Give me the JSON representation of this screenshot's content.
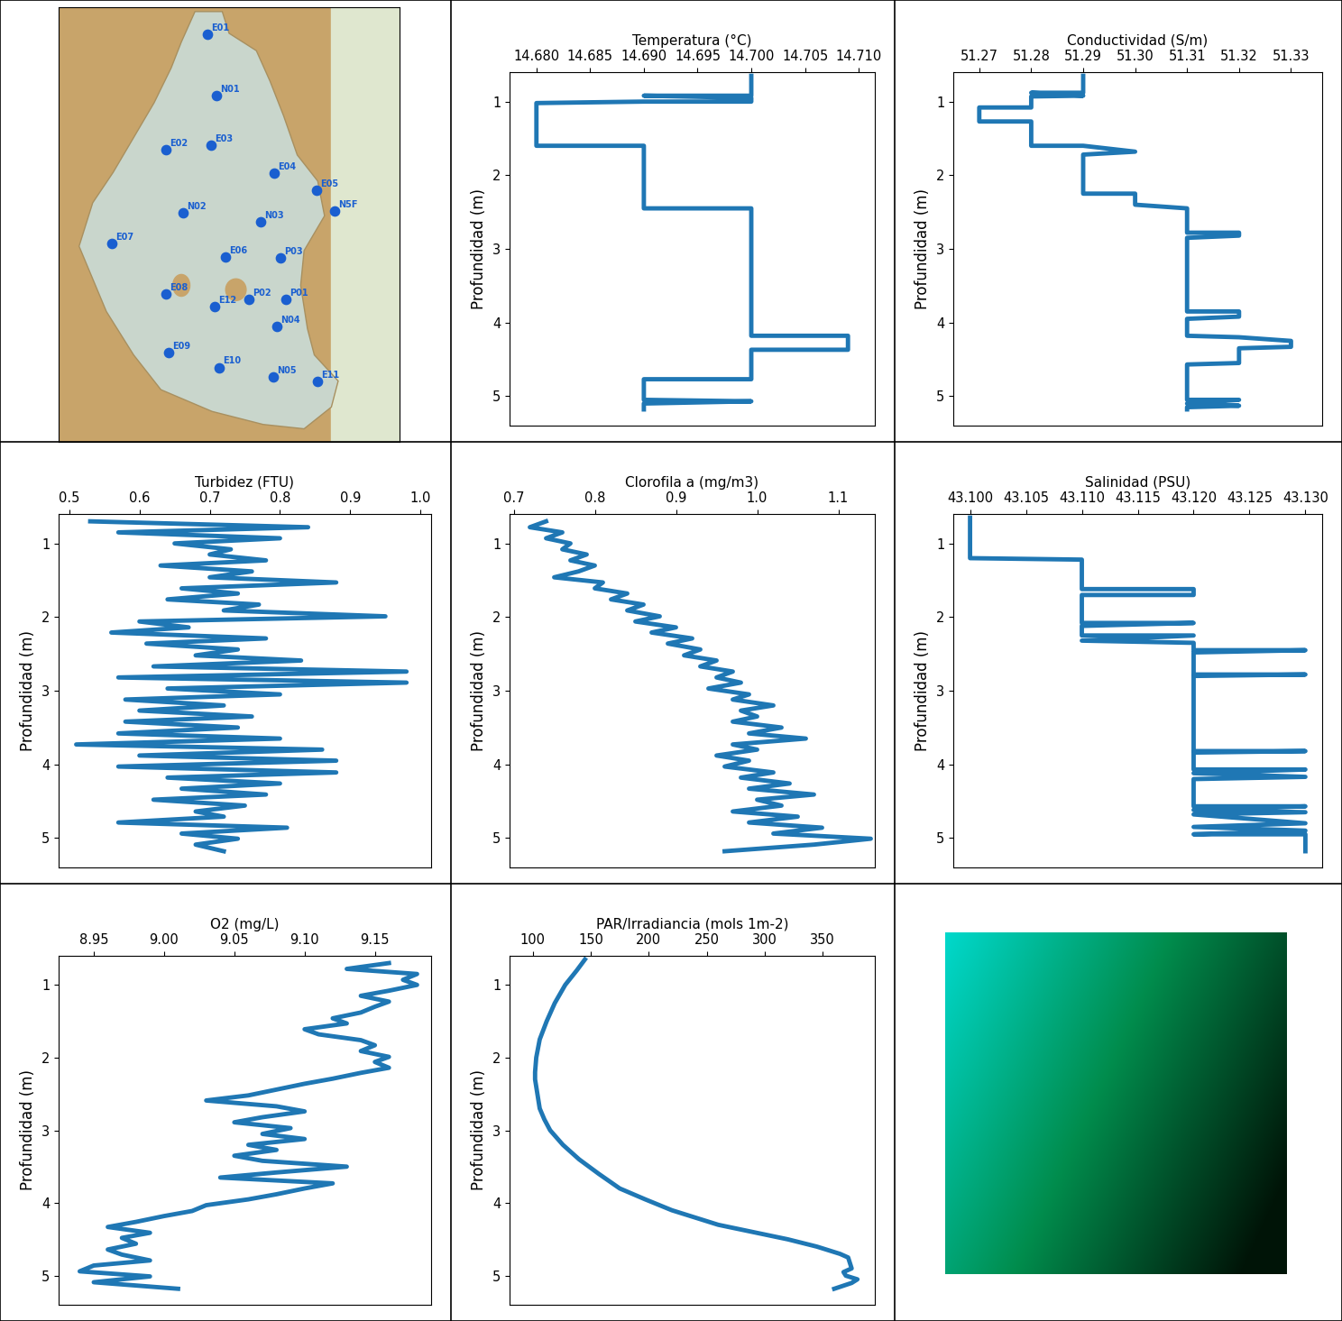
{
  "chart_data": [
    {
      "type": "map",
      "xlim": [
        0,
        100
      ],
      "ylim": [
        0,
        100
      ],
      "tick_labels": false,
      "color": "#1a5fd0",
      "points": [
        {
          "name": "E01",
          "x": 43.7,
          "y": 93.8
        },
        {
          "name": "N01",
          "x": 46.3,
          "y": 79.7
        },
        {
          "name": "E02",
          "x": 31.5,
          "y": 67.2
        },
        {
          "name": "E03",
          "x": 44.7,
          "y": 68.3
        },
        {
          "name": "E04",
          "x": 63.2,
          "y": 61.8
        },
        {
          "name": "E05",
          "x": 75.7,
          "y": 57.9
        },
        {
          "name": "N5F",
          "x": 81.0,
          "y": 53.1
        },
        {
          "name": "N02",
          "x": 36.5,
          "y": 52.7
        },
        {
          "name": "N03",
          "x": 59.3,
          "y": 50.6
        },
        {
          "name": "E07",
          "x": 15.6,
          "y": 45.6
        },
        {
          "name": "E06",
          "x": 48.9,
          "y": 42.5
        },
        {
          "name": "P03",
          "x": 65.1,
          "y": 42.3
        },
        {
          "name": "E08",
          "x": 31.5,
          "y": 34.0
        },
        {
          "name": "P02",
          "x": 55.8,
          "y": 32.8
        },
        {
          "name": "P01",
          "x": 66.7,
          "y": 32.8
        },
        {
          "name": "E12",
          "x": 45.8,
          "y": 31.1
        },
        {
          "name": "N04",
          "x": 64.0,
          "y": 26.6
        },
        {
          "name": "E09",
          "x": 32.3,
          "y": 20.5
        },
        {
          "name": "E10",
          "x": 47.1,
          "y": 17.1
        },
        {
          "name": "N05",
          "x": 63.0,
          "y": 14.9
        },
        {
          "name": "E11",
          "x": 75.9,
          "y": 13.9
        }
      ]
    },
    {
      "type": "line",
      "xlabel": "Temperatura (°C)",
      "ylabel": "Profundidad (m)",
      "color": "#1f77b4",
      "xlim": [
        14.6775,
        14.7115
      ],
      "ylim": [
        5.4,
        0.6
      ],
      "xticks": [
        {
          "value": 14.68,
          "label": "14.680"
        },
        {
          "value": 14.685,
          "label": "14.685"
        },
        {
          "value": 14.69,
          "label": "14.690"
        },
        {
          "value": 14.695,
          "label": "14.695"
        },
        {
          "value": 14.7,
          "label": "14.700"
        },
        {
          "value": 14.705,
          "label": "14.705"
        },
        {
          "value": 14.71,
          "label": "14.710"
        }
      ],
      "yticks": [
        1,
        2,
        3,
        4,
        5
      ],
      "x": [
        14.7,
        14.7,
        14.69,
        14.7,
        14.7,
        14.69,
        14.68,
        14.68,
        14.69,
        14.69,
        14.7,
        14.7,
        14.709,
        14.709,
        14.7,
        14.7,
        14.69,
        14.69,
        14.7,
        14.69,
        14.69
      ],
      "values": [
        0.65,
        0.92,
        0.92,
        0.95,
        1.0,
        1.0,
        1.02,
        1.6,
        1.6,
        2.45,
        2.45,
        4.18,
        4.18,
        4.37,
        4.37,
        4.77,
        4.77,
        5.05,
        5.07,
        5.1,
        5.18
      ]
    },
    {
      "type": "line",
      "xlabel": "Conductividad (S/m)",
      "ylabel": "Profundidad (m)",
      "color": "#1f77b4",
      "xlim": [
        51.265,
        51.336
      ],
      "ylim": [
        5.4,
        0.6
      ],
      "xticks": [
        {
          "value": 51.27,
          "label": "51.27"
        },
        {
          "value": 51.28,
          "label": "51.28"
        },
        {
          "value": 51.29,
          "label": "51.29"
        },
        {
          "value": 51.3,
          "label": "51.30"
        },
        {
          "value": 51.31,
          "label": "51.31"
        },
        {
          "value": 51.32,
          "label": "51.32"
        },
        {
          "value": 51.33,
          "label": "51.33"
        }
      ],
      "yticks": [
        1,
        2,
        3,
        4,
        5
      ],
      "x": [
        51.29,
        51.29,
        51.28,
        51.29,
        51.28,
        51.28,
        51.27,
        51.27,
        51.28,
        51.28,
        51.29,
        51.3,
        51.29,
        51.29,
        51.3,
        51.3,
        51.31,
        51.31,
        51.32,
        51.32,
        51.31,
        51.31,
        51.32,
        51.32,
        51.31,
        51.31,
        51.32,
        51.33,
        51.33,
        51.32,
        51.32,
        51.31,
        51.31,
        51.32,
        51.31,
        51.32,
        51.31,
        51.31
      ],
      "values": [
        0.65,
        0.88,
        0.88,
        0.92,
        0.93,
        1.08,
        1.08,
        1.27,
        1.27,
        1.6,
        1.6,
        1.68,
        1.72,
        2.25,
        2.25,
        2.4,
        2.45,
        2.78,
        2.78,
        2.82,
        2.85,
        3.85,
        3.85,
        3.92,
        3.95,
        4.18,
        4.2,
        4.25,
        4.33,
        4.35,
        4.55,
        4.57,
        5.05,
        5.05,
        5.1,
        5.13,
        5.15,
        5.18
      ]
    },
    {
      "type": "line",
      "xlabel": "Turbidez (FTU)",
      "ylabel": "Profundidad (m)",
      "color": "#1f77b4",
      "xlim": [
        0.485,
        1.015
      ],
      "ylim": [
        5.4,
        0.6
      ],
      "xticks": [
        0.5,
        0.6,
        0.7,
        0.8,
        0.9,
        {
          "value": 1.0,
          "label": "1.0"
        }
      ],
      "yticks": [
        1,
        2,
        3,
        4,
        5
      ],
      "x": [
        0.53,
        0.84,
        0.57,
        0.8,
        0.65,
        0.73,
        0.7,
        0.78,
        0.63,
        0.76,
        0.7,
        0.88,
        0.66,
        0.74,
        0.64,
        0.77,
        0.72,
        0.95,
        0.6,
        0.67,
        0.56,
        0.78,
        0.61,
        0.74,
        0.68,
        0.83,
        0.62,
        0.98,
        0.57,
        0.98,
        0.64,
        0.8,
        0.58,
        0.72,
        0.6,
        0.76,
        0.58,
        0.74,
        0.57,
        0.8,
        0.51,
        0.86,
        0.6,
        0.88,
        0.57,
        0.88,
        0.64,
        0.8,
        0.66,
        0.78,
        0.62,
        0.75,
        0.68,
        0.72,
        0.57,
        0.81,
        0.66,
        0.74,
        0.68,
        0.72
      ],
      "values": [
        0.7,
        0.78,
        0.85,
        0.93,
        1.0,
        1.08,
        1.15,
        1.23,
        1.3,
        1.38,
        1.46,
        1.53,
        1.61,
        1.68,
        1.76,
        1.83,
        1.91,
        1.99,
        2.06,
        2.14,
        2.21,
        2.29,
        2.36,
        2.44,
        2.52,
        2.59,
        2.67,
        2.74,
        2.82,
        2.89,
        2.97,
        3.05,
        3.12,
        3.2,
        3.27,
        3.35,
        3.42,
        3.5,
        3.58,
        3.65,
        3.73,
        3.8,
        3.88,
        3.95,
        4.03,
        4.11,
        4.18,
        4.26,
        4.33,
        4.41,
        4.48,
        4.56,
        4.64,
        4.71,
        4.79,
        4.86,
        4.94,
        5.01,
        5.09,
        5.18
      ]
    },
    {
      "type": "line",
      "xlabel": "Clorofila a (mg/m3)",
      "ylabel": "Profundidad (m)",
      "color": "#1f77b4",
      "xlim": [
        0.695,
        1.145
      ],
      "ylim": [
        5.4,
        0.6
      ],
      "xticks": [
        0.7,
        0.8,
        0.9,
        {
          "value": 1.0,
          "label": "1.0"
        },
        1.1
      ],
      "yticks": [
        1,
        2,
        3,
        4,
        5
      ],
      "x": [
        0.74,
        0.72,
        0.76,
        0.74,
        0.77,
        0.76,
        0.79,
        0.77,
        0.8,
        0.78,
        0.75,
        0.81,
        0.8,
        0.84,
        0.82,
        0.86,
        0.84,
        0.88,
        0.85,
        0.9,
        0.87,
        0.92,
        0.89,
        0.93,
        0.91,
        0.95,
        0.93,
        0.97,
        0.95,
        0.98,
        0.94,
        0.99,
        0.97,
        1.02,
        0.98,
        1.0,
        0.97,
        1.03,
        0.99,
        1.06,
        0.97,
        1.0,
        0.95,
        0.99,
        0.96,
        1.02,
        0.98,
        1.04,
        0.99,
        1.07,
        1.0,
        1.03,
        0.97,
        1.05,
        0.99,
        1.08,
        1.02,
        1.14,
        1.07,
        0.96
      ],
      "values": [
        0.7,
        0.78,
        0.85,
        0.93,
        1.0,
        1.08,
        1.15,
        1.23,
        1.3,
        1.38,
        1.46,
        1.53,
        1.61,
        1.68,
        1.76,
        1.83,
        1.91,
        1.99,
        2.06,
        2.14,
        2.21,
        2.29,
        2.36,
        2.44,
        2.52,
        2.59,
        2.67,
        2.74,
        2.82,
        2.89,
        2.97,
        3.05,
        3.12,
        3.2,
        3.27,
        3.35,
        3.42,
        3.5,
        3.58,
        3.65,
        3.73,
        3.8,
        3.88,
        3.95,
        4.03,
        4.11,
        4.18,
        4.26,
        4.33,
        4.41,
        4.48,
        4.56,
        4.64,
        4.71,
        4.79,
        4.86,
        4.94,
        5.01,
        5.09,
        5.18
      ]
    },
    {
      "type": "line",
      "xlabel": "Salinidad (PSU)",
      "ylabel": "Profundidad (m)",
      "color": "#1f77b4",
      "xlim": [
        43.0985,
        43.1315
      ],
      "ylim": [
        5.4,
        0.6
      ],
      "xticks": [
        {
          "value": 43.1,
          "label": "43.100"
        },
        {
          "value": 43.105,
          "label": "43.105"
        },
        {
          "value": 43.11,
          "label": "43.110"
        },
        {
          "value": 43.115,
          "label": "43.115"
        },
        {
          "value": 43.12,
          "label": "43.120"
        },
        {
          "value": 43.125,
          "label": "43.125"
        },
        {
          "value": 43.13,
          "label": "43.130"
        }
      ],
      "yticks": [
        1,
        2,
        3,
        4,
        5
      ],
      "x": [
        43.1,
        43.1,
        43.11,
        43.11,
        43.12,
        43.12,
        43.11,
        43.11,
        43.12,
        43.11,
        43.11,
        43.12,
        43.11,
        43.12,
        43.12,
        43.13,
        43.12,
        43.12,
        43.13,
        43.12,
        43.12,
        43.13,
        43.12,
        43.12,
        43.13,
        43.12,
        43.13,
        43.12,
        43.12,
        43.13,
        43.12,
        43.13,
        43.12,
        43.13,
        43.12,
        43.13,
        43.12,
        43.13,
        43.13
      ],
      "values": [
        0.65,
        1.2,
        1.22,
        1.62,
        1.62,
        1.7,
        1.7,
        2.08,
        2.08,
        2.12,
        2.25,
        2.25,
        2.32,
        2.35,
        2.45,
        2.45,
        2.48,
        2.78,
        2.78,
        2.8,
        3.82,
        3.82,
        3.84,
        4.07,
        4.07,
        4.12,
        4.17,
        4.2,
        4.57,
        4.57,
        4.62,
        4.65,
        4.68,
        4.8,
        4.85,
        4.9,
        4.95,
        4.95,
        5.18
      ]
    },
    {
      "type": "line",
      "xlabel": "O2 (mg/L)",
      "ylabel": "Profundidad (m)",
      "color": "#1f77b4",
      "xlim": [
        8.925,
        9.19
      ],
      "ylim": [
        5.4,
        0.6
      ],
      "xticks": [
        8.95,
        {
          "value": 9.0,
          "label": "9.00"
        },
        9.05,
        {
          "value": 9.1,
          "label": "9.10"
        },
        9.15
      ],
      "yticks": [
        1,
        2,
        3,
        4,
        5
      ],
      "x": [
        9.16,
        9.13,
        9.18,
        9.17,
        9.18,
        9.16,
        9.14,
        9.16,
        9.15,
        9.14,
        9.12,
        9.13,
        9.1,
        9.11,
        9.14,
        9.15,
        9.14,
        9.16,
        9.15,
        9.16,
        9.14,
        9.12,
        9.1,
        9.08,
        9.06,
        9.03,
        9.08,
        9.1,
        9.07,
        9.05,
        9.09,
        9.07,
        9.1,
        9.06,
        9.08,
        9.05,
        9.07,
        9.13,
        9.08,
        9.04,
        9.12,
        9.1,
        9.08,
        9.06,
        9.03,
        9.02,
        9.0,
        8.98,
        8.96,
        8.99,
        8.97,
        8.98,
        8.96,
        8.97,
        8.99,
        8.95,
        8.94,
        8.99,
        8.95,
        9.01
      ],
      "values": [
        0.7,
        0.78,
        0.85,
        0.93,
        1.0,
        1.08,
        1.15,
        1.23,
        1.3,
        1.38,
        1.46,
        1.53,
        1.61,
        1.68,
        1.76,
        1.83,
        1.91,
        1.99,
        2.06,
        2.14,
        2.21,
        2.29,
        2.36,
        2.44,
        2.52,
        2.59,
        2.67,
        2.74,
        2.82,
        2.89,
        2.97,
        3.05,
        3.12,
        3.2,
        3.27,
        3.35,
        3.42,
        3.5,
        3.58,
        3.65,
        3.73,
        3.8,
        3.88,
        3.95,
        4.03,
        4.11,
        4.18,
        4.26,
        4.33,
        4.41,
        4.48,
        4.56,
        4.64,
        4.71,
        4.79,
        4.86,
        4.94,
        5.01,
        5.09,
        5.18
      ]
    },
    {
      "type": "line",
      "xlabel": "PAR/Irradiancia (mols 1m-2)",
      "ylabel": "Profundidad (m)",
      "color": "#1f77b4",
      "xlim": [
        80,
        395
      ],
      "ylim": [
        5.4,
        0.6
      ],
      "xticks": [
        100,
        150,
        200,
        250,
        300,
        350
      ],
      "yticks": [
        1,
        2,
        3,
        4,
        5
      ],
      "x": [
        145,
        138,
        128,
        119,
        112,
        106,
        103,
        102,
        102,
        104,
        106,
        110,
        115,
        126,
        140,
        157,
        175,
        197,
        220,
        240,
        260,
        290,
        320,
        345,
        365,
        372,
        375,
        368,
        370,
        380,
        375,
        360
      ],
      "values": [
        0.65,
        0.8,
        1.0,
        1.25,
        1.5,
        1.75,
        2.0,
        2.2,
        2.3,
        2.5,
        2.7,
        2.85,
        3.0,
        3.2,
        3.4,
        3.6,
        3.8,
        3.95,
        4.1,
        4.2,
        4.3,
        4.4,
        4.5,
        4.6,
        4.7,
        4.75,
        4.9,
        4.95,
        5.0,
        5.05,
        5.1,
        5.18
      ]
    },
    {
      "type": "photo"
    }
  ]
}
